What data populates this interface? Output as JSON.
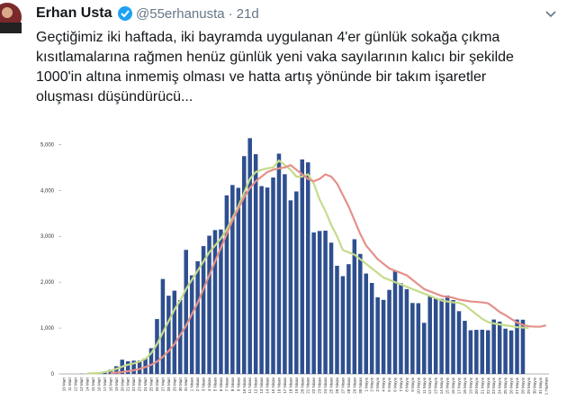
{
  "tweet": {
    "author": "Erhan Usta",
    "handle": "@55erhanusta",
    "separator": "·",
    "time": "21d",
    "text_lines": [
      "Geçtiğimiz iki haftada, iki bayramda uygulanan 4'er günlük sokağa çıkma",
      "kısıtlamalarına rağmen henüz günlük yeni vaka sayılarının kalıcı bir şekilde",
      "1000'in altına inmemiş olması ve hatta artış yönünde bir takım işaretler",
      "oluşması düşündürücü..."
    ]
  },
  "chart_data": {
    "type": "bar",
    "color": "#2e4f8f",
    "grid": false,
    "categories": [
      "10 Mart",
      "11 Mart",
      "12 Mart",
      "13 Mart",
      "14 Mart",
      "15 Mart",
      "16 Mart",
      "17 Mart",
      "18 Mart",
      "19 Mart",
      "20 Mart",
      "21 Mart",
      "22 Mart",
      "23 Mart",
      "24 Mart",
      "25 Mart",
      "26 Mart",
      "27 Mart",
      "28 Mart",
      "29 Mart",
      "30 Mart",
      "31 Mart",
      "1 Nisan",
      "2 Nisan",
      "3 Nisan",
      "4 Nisan",
      "5 Nisan",
      "6 Nisan",
      "7 Nisan",
      "8 Nisan",
      "9 Nisan",
      "10 Nisan",
      "11 Nisan",
      "12 Nisan",
      "13 Nisan",
      "14 Nisan",
      "15 Nisan",
      "16 Nisan",
      "17 Nisan",
      "18 Nisan",
      "19 Nisan",
      "20 Nisan",
      "21 Nisan",
      "22 Nisan",
      "23 Nisan",
      "24 Nisan",
      "25 Nisan",
      "26 Nisan",
      "27 Nisan",
      "28 Nisan",
      "29 Nisan",
      "30 Nisan",
      "1 Mayıs",
      "2 Mayıs",
      "3 Mayıs",
      "4 Mayıs",
      "5 Mayıs",
      "6 Mayıs",
      "7 Mayıs",
      "8 Mayıs",
      "9 Mayıs",
      "10 Mayıs",
      "11 Mayıs",
      "12 Mayıs",
      "13 Mayıs",
      "14 Mayıs",
      "15 Mayıs",
      "16 Mayıs",
      "17 Mayıs",
      "18 Mayıs",
      "19 Mayıs",
      "20 Mayıs",
      "21 Mayıs",
      "22 Mayıs",
      "23 Mayıs",
      "24 Mayıs",
      "25 Mayıs",
      "26 Mayıs",
      "27 Mayıs",
      "28 Mayıs",
      "29 Mayıs",
      "30 Mayıs",
      "31 Mayıs",
      "1 Haziran"
    ],
    "values": [
      0,
      1,
      0,
      4,
      1,
      12,
      29,
      51,
      93,
      168,
      311,
      277,
      289,
      293,
      343,
      561,
      1196,
      2069,
      1704,
      1815,
      1610,
      2704,
      2148,
      2456,
      2786,
      3013,
      3135,
      3148,
      3892,
      4117,
      4056,
      4747,
      5138,
      4789,
      4093,
      4062,
      4281,
      4801,
      4353,
      3783,
      3977,
      4674,
      4611,
      3083,
      3116,
      3122,
      2861,
      2357,
      2131,
      2392,
      2936,
      2615,
      2188,
      1983,
      1670,
      1614,
      1832,
      2253,
      1977,
      1848,
      1546,
      1542,
      1114,
      1704,
      1641,
      1635,
      1708,
      1610,
      1368,
      1158,
      952,
      961,
      964,
      952,
      1186,
      1141,
      987,
      948,
      1186,
      1182,
      null,
      null,
      null,
      null
    ],
    "lines": [
      {
        "color": "#c5db8c",
        "values": [
          null,
          null,
          null,
          null,
          10,
          15,
          20,
          40,
          70,
          110,
          160,
          200,
          230,
          270,
          330,
          450,
          650,
          900,
          1150,
          1400,
          1600,
          1850,
          2050,
          2250,
          2450,
          2650,
          2800,
          2950,
          3150,
          3400,
          3650,
          3950,
          4250,
          4400,
          4450,
          4480,
          4500,
          4650,
          4550,
          4450,
          4300,
          4300,
          4350,
          4150,
          3800,
          3550,
          3250,
          3000,
          2700,
          2650,
          2600,
          2500,
          2400,
          2300,
          2200,
          2100,
          2050,
          2000,
          1950,
          1900,
          1850,
          1800,
          1750,
          1700,
          1650,
          1600,
          1580,
          1560,
          1550,
          1500,
          1400,
          1300,
          1200,
          1130,
          1100,
          1080,
          1060,
          1040,
          1020,
          1010,
          1000,
          null,
          null,
          null
        ]
      },
      {
        "color": "#e4918b",
        "values": [
          null,
          null,
          null,
          null,
          null,
          null,
          null,
          null,
          20,
          30,
          40,
          60,
          80,
          110,
          150,
          200,
          270,
          370,
          500,
          650,
          850,
          1050,
          1300,
          1550,
          1850,
          2150,
          2450,
          2750,
          3050,
          3350,
          3600,
          3850,
          4050,
          4200,
          4300,
          4400,
          4450,
          4480,
          4500,
          4550,
          4450,
          4350,
          4250,
          4200,
          4250,
          4350,
          4300,
          4150,
          3900,
          3650,
          3350,
          3050,
          2800,
          2650,
          2500,
          2400,
          2300,
          2250,
          2200,
          2150,
          2050,
          1950,
          1850,
          1800,
          1750,
          1700,
          1680,
          1660,
          1620,
          1600,
          1580,
          1570,
          1560,
          1540,
          1450,
          1350,
          1280,
          1200,
          1120,
          1070,
          1040,
          1030,
          1030,
          1060
        ]
      }
    ],
    "ylim": [
      0,
      5400
    ],
    "yticks": [
      0,
      {
        "value": 1000,
        "label": "1,000"
      },
      {
        "value": 2000,
        "label": "2,000"
      },
      {
        "value": 3000,
        "label": "3,000"
      },
      {
        "value": 4000,
        "label": "4,000"
      },
      {
        "value": 5000,
        "label": "5,000"
      }
    ]
  }
}
